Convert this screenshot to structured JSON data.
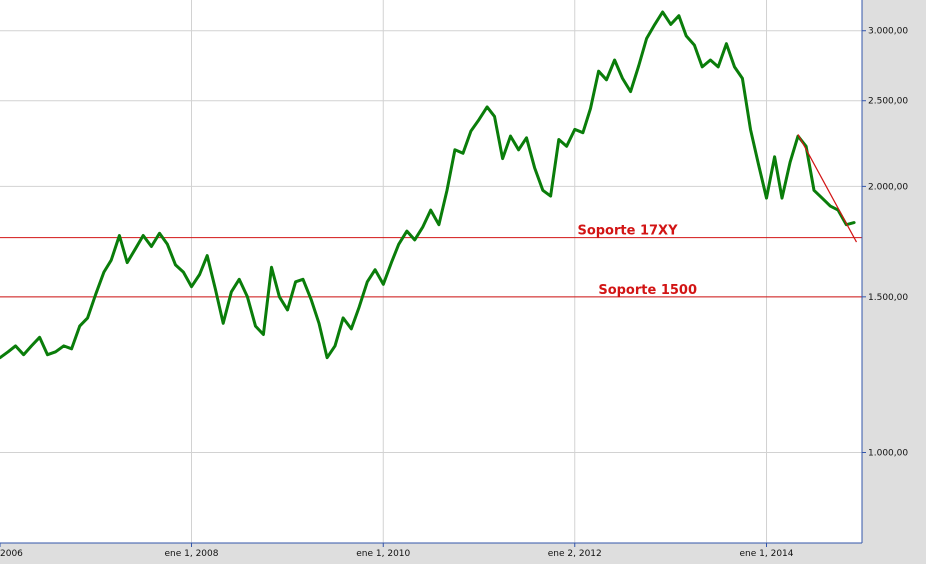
{
  "chart_data": {
    "type": "line",
    "title": "",
    "xlabel": "",
    "ylabel": "",
    "y_scale": "log",
    "ylim": [
      790,
      3250
    ],
    "xlim": [
      "2006-01-01",
      "2014-12-31"
    ],
    "grid": true,
    "colors": {
      "plot_background": "#ffffff",
      "outer_background": "#dedede",
      "series_line": "#0a7d0a",
      "support_lines": "#d21414",
      "grid": "#d2d2d2",
      "axis": "#3355aa"
    },
    "x_ticks": [
      {
        "date": "2006-01-01",
        "label": "2006"
      },
      {
        "date": "2008-01-01",
        "label": "ene 1, 2008"
      },
      {
        "date": "2010-01-01",
        "label": "ene 1, 2010"
      },
      {
        "date": "2012-01-01",
        "label": "ene 2, 2012"
      },
      {
        "date": "2014-01-01",
        "label": "ene 1, 2014"
      }
    ],
    "y_ticks": [
      {
        "value": 1000,
        "label": "1.000,00"
      },
      {
        "value": 1500,
        "label": "1.500,00"
      },
      {
        "value": 2000,
        "label": "2.000,00"
      },
      {
        "value": 2500,
        "label": "2.500,00"
      },
      {
        "value": 3000,
        "label": "3.000,00"
      }
    ],
    "horizontal_lines": [
      {
        "value": 1750,
        "label": "Soporte 17XY",
        "label_date": "2012-07-20"
      },
      {
        "value": 1500,
        "label": "Soporte 1500",
        "label_date": "2012-10-05"
      }
    ],
    "trendline": {
      "start": {
        "date": "2014-05-01",
        "value": 2290
      },
      "end": {
        "date": "2014-12-10",
        "value": 1730
      }
    },
    "series": [
      {
        "x": [
          "2006-01-01",
          "2006-02-01",
          "2006-03-01",
          "2006-04-01",
          "2006-05-01",
          "2006-06-01",
          "2006-07-01",
          "2006-08-01",
          "2006-09-01",
          "2006-10-01",
          "2006-11-01",
          "2006-12-01",
          "2007-01-01",
          "2007-02-01",
          "2007-03-01",
          "2007-04-01",
          "2007-05-01",
          "2007-06-01",
          "2007-07-01",
          "2007-08-01",
          "2007-09-01",
          "2007-10-01",
          "2007-11-01",
          "2007-12-01",
          "2008-01-01",
          "2008-02-01",
          "2008-03-01",
          "2008-04-01",
          "2008-05-01",
          "2008-06-01",
          "2008-07-01",
          "2008-08-01",
          "2008-09-01",
          "2008-10-01",
          "2008-11-01",
          "2008-12-01",
          "2009-01-01",
          "2009-02-01",
          "2009-03-01",
          "2009-04-01",
          "2009-05-01",
          "2009-06-01",
          "2009-07-01",
          "2009-08-01",
          "2009-09-01",
          "2009-10-01",
          "2009-11-01",
          "2009-12-01",
          "2010-01-01",
          "2010-02-01",
          "2010-03-01",
          "2010-04-01",
          "2010-05-01",
          "2010-06-01",
          "2010-07-01",
          "2010-08-01",
          "2010-09-01",
          "2010-10-01",
          "2010-11-01",
          "2010-12-01",
          "2011-01-01",
          "2011-02-01",
          "2011-03-01",
          "2011-04-01",
          "2011-05-01",
          "2011-06-01",
          "2011-07-01",
          "2011-08-01",
          "2011-09-01",
          "2011-10-01",
          "2011-11-01",
          "2011-12-01",
          "2012-01-01",
          "2012-02-01",
          "2012-03-01",
          "2012-04-01",
          "2012-05-01",
          "2012-06-01",
          "2012-07-01",
          "2012-08-01",
          "2012-09-01",
          "2012-10-01",
          "2012-11-01",
          "2012-12-01",
          "2013-01-01",
          "2013-02-01",
          "2013-03-01",
          "2013-04-01",
          "2013-05-01",
          "2013-06-01",
          "2013-07-01",
          "2013-08-01",
          "2013-09-01",
          "2013-10-01",
          "2013-11-01",
          "2013-12-01",
          "2014-01-01",
          "2014-02-01",
          "2014-03-01",
          "2014-04-01",
          "2014-05-01",
          "2014-06-01",
          "2014-07-01",
          "2014-08-01",
          "2014-09-01",
          "2014-10-01",
          "2014-11-01",
          "2014-12-01"
        ],
        "values": [
          1280,
          1300,
          1320,
          1290,
          1320,
          1350,
          1290,
          1300,
          1320,
          1310,
          1390,
          1420,
          1510,
          1600,
          1650,
          1760,
          1640,
          1700,
          1760,
          1710,
          1770,
          1720,
          1630,
          1600,
          1540,
          1590,
          1670,
          1530,
          1400,
          1520,
          1570,
          1500,
          1390,
          1360,
          1620,
          1500,
          1450,
          1560,
          1570,
          1490,
          1400,
          1280,
          1320,
          1420,
          1380,
          1460,
          1560,
          1610,
          1550,
          1640,
          1720,
          1780,
          1740,
          1800,
          1880,
          1810,
          1980,
          2200,
          2180,
          2310,
          2380,
          2460,
          2400,
          2150,
          2280,
          2200,
          2270,
          2100,
          1980,
          1950,
          2260,
          2220,
          2320,
          2300,
          2450,
          2700,
          2640,
          2780,
          2650,
          2560,
          2740,
          2940,
          3050,
          3150,
          3050,
          3120,
          2960,
          2890,
          2730,
          2780,
          2730,
          2900,
          2730,
          2650,
          2320,
          2120,
          1940,
          2160,
          1940,
          2130,
          2280,
          2220,
          1980,
          1940,
          1900,
          1880,
          1810,
          1820
        ]
      }
    ]
  }
}
